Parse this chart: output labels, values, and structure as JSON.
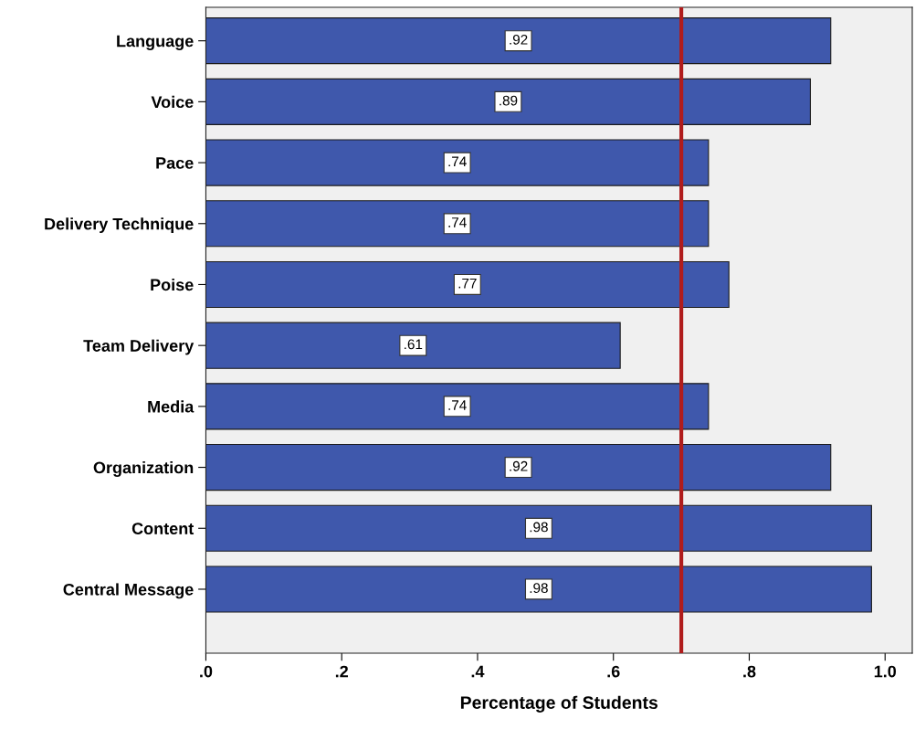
{
  "chart_data": {
    "type": "bar",
    "orientation": "horizontal",
    "xlabel": "Percentage of Students",
    "categories": [
      "Language",
      "Voice",
      "Pace",
      "Delivery Technique",
      "Poise",
      "Team Delivery",
      "Media",
      "Organization",
      "Content",
      "Central Message"
    ],
    "values": [
      0.92,
      0.89,
      0.74,
      0.74,
      0.77,
      0.61,
      0.74,
      0.92,
      0.98,
      0.98
    ],
    "value_labels": [
      ".92",
      ".89",
      ".74",
      ".74",
      ".77",
      ".61",
      ".74",
      ".92",
      ".98",
      ".98"
    ],
    "color": "#3f58ac",
    "xlim": [
      0,
      1.04
    ],
    "xticks": [
      {
        "value": 0,
        "label": ".0"
      },
      {
        "value": 0.2,
        "label": ".2"
      },
      {
        "value": 0.4,
        "label": ".4"
      },
      {
        "value": 0.6,
        "label": ".6"
      },
      {
        "value": 0.8,
        "label": ".8"
      },
      {
        "value": 1.0,
        "label": "1.0"
      }
    ],
    "ref_lines": [
      {
        "axis": "x",
        "value": 0.7,
        "label": null,
        "color": "#b01c1c"
      }
    ],
    "grid": false
  }
}
